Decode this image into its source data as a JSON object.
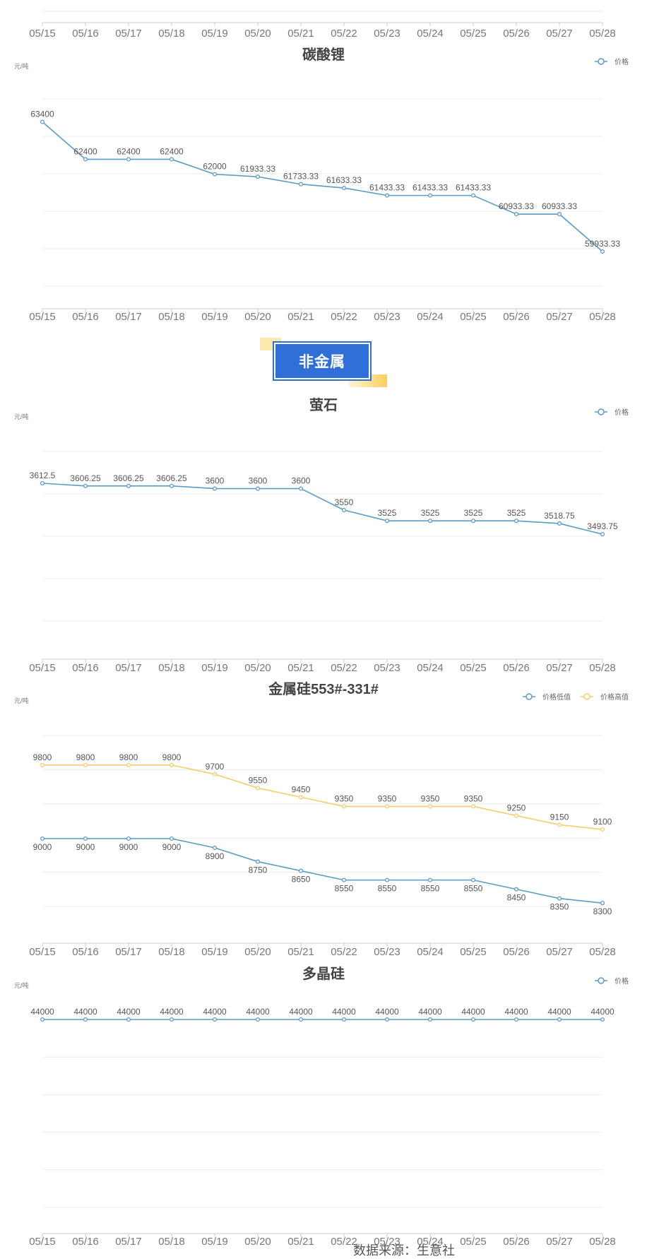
{
  "section_badge": "非金属",
  "footer_note": "数据来源：生意社",
  "top_axis": {
    "dates": [
      "05/15",
      "05/16",
      "05/17",
      "05/18",
      "05/19",
      "05/20",
      "05/21",
      "05/22",
      "05/23",
      "05/24",
      "05/25",
      "05/26",
      "05/27",
      "05/28"
    ]
  },
  "chart_data": [
    {
      "type": "line",
      "title": "碳酸锂",
      "ylabel": "元/吨",
      "categories": [
        "05/15",
        "05/16",
        "05/17",
        "05/18",
        "05/19",
        "05/20",
        "05/21",
        "05/22",
        "05/23",
        "05/24",
        "05/25",
        "05/26",
        "05/27",
        "05/28"
      ],
      "series": [
        {
          "name": "价格",
          "color": "#5b9bc4",
          "values": [
            63400,
            62400,
            62400,
            62400,
            62000,
            61933.33,
            61733.33,
            61633.33,
            61433.33,
            61433.33,
            61433.33,
            60933.33,
            60933.33,
            59933.33
          ]
        }
      ],
      "ylim": [
        59000,
        64000
      ],
      "grid": true,
      "legend": "top-right"
    },
    {
      "type": "line",
      "title": "萤石",
      "ylabel": "元/吨",
      "categories": [
        "05/15",
        "05/16",
        "05/17",
        "05/18",
        "05/19",
        "05/20",
        "05/21",
        "05/22",
        "05/23",
        "05/24",
        "05/25",
        "05/26",
        "05/27",
        "05/28"
      ],
      "series": [
        {
          "name": "价格",
          "color": "#5b9bc4",
          "values": [
            3612.5,
            3606.25,
            3606.25,
            3606.25,
            3600,
            3600,
            3600,
            3550,
            3525,
            3525,
            3525,
            3525,
            3518.75,
            3493.75
          ]
        }
      ],
      "ylim": [
        3400,
        3650
      ],
      "grid": true,
      "legend": "top-right"
    },
    {
      "type": "line",
      "title": "金属硅553#-331#",
      "ylabel": "元/吨",
      "categories": [
        "05/15",
        "05/16",
        "05/17",
        "05/18",
        "05/19",
        "05/20",
        "05/21",
        "05/22",
        "05/23",
        "05/24",
        "05/25",
        "05/26",
        "05/27",
        "05/28"
      ],
      "series": [
        {
          "name": "价格低值",
          "color": "#5b9bc4",
          "values": [
            9000,
            9000,
            9000,
            9000,
            8900,
            8750,
            8650,
            8550,
            8550,
            8550,
            8550,
            8450,
            8350,
            8300
          ]
        },
        {
          "name": "价格高值",
          "color": "#f5cd6b",
          "values": [
            9800,
            9800,
            9800,
            9800,
            9700,
            9550,
            9450,
            9350,
            9350,
            9350,
            9350,
            9250,
            9150,
            9100
          ]
        }
      ],
      "ylim": [
        8000,
        10000
      ],
      "grid": true,
      "legend": "top-right"
    },
    {
      "type": "line",
      "title": "多晶硅",
      "ylabel": "元/吨",
      "categories": [
        "05/15",
        "05/16",
        "05/17",
        "05/18",
        "05/19",
        "05/20",
        "05/21",
        "05/22",
        "05/23",
        "05/24",
        "05/25",
        "05/26",
        "05/27",
        "05/28"
      ],
      "series": [
        {
          "name": "价格",
          "color": "#5b9bc4",
          "values": [
            44000,
            44000,
            44000,
            44000,
            44000,
            44000,
            44000,
            44000,
            44000,
            44000,
            44000,
            44000,
            44000,
            44000
          ]
        }
      ],
      "ylim": [
        0,
        50000
      ],
      "grid": true,
      "legend": "top-right"
    }
  ]
}
